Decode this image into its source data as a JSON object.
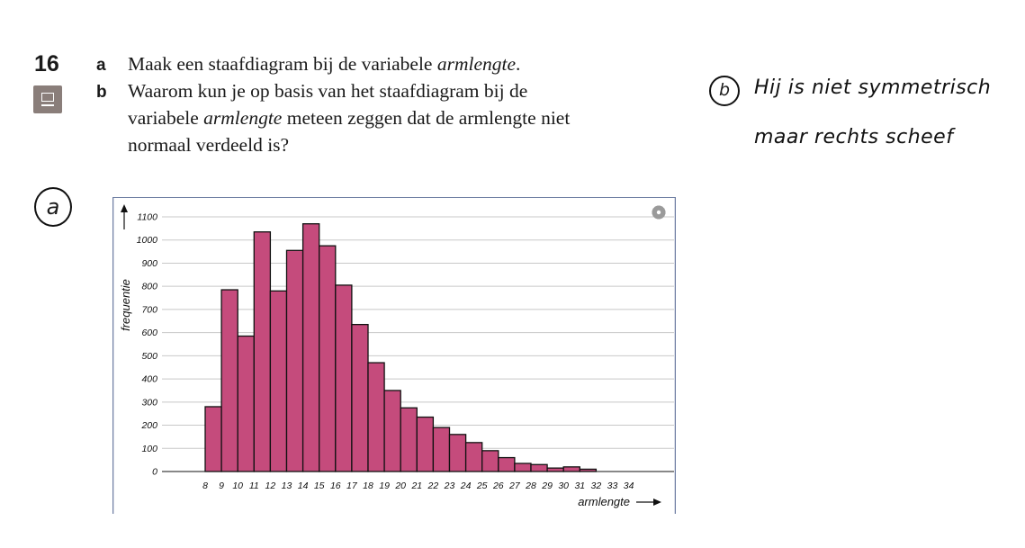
{
  "question": {
    "number": "16",
    "parts": [
      {
        "letter": "a",
        "text_plain": "Maak een staafdiagram bij de variabele ",
        "text_italic": "armlengte",
        "text_end": "."
      },
      {
        "letter": "b",
        "line1": "Waarom kun je op basis van het staafdiagram bij de",
        "line2_plain": "variabele ",
        "line2_italic": "armlengte",
        "line2_end": " meteen zeggen dat de armlengte niet",
        "line3": "normaal verdeeld is?"
      }
    ]
  },
  "handwriting": {
    "label_a": "a",
    "label_b": "b",
    "answer_b_line1": "Hij is niet symmetrisch",
    "answer_b_line2": "maar rechts scheef"
  },
  "icons": {
    "screen": "screen-icon",
    "settings": "gear-icon",
    "arrow_up": "arrow-up-icon",
    "arrow_right": "arrow-right-icon"
  },
  "colors": {
    "bar_fill": "#c54b7c",
    "bar_stroke": "#111111",
    "grid": "#c8c8c8",
    "frame": "#6f7fa3"
  },
  "chart_data": {
    "type": "bar",
    "xlabel": "armlengte",
    "ylabel": "frequentie",
    "ylim": [
      0,
      1100
    ],
    "yticks": [
      0,
      100,
      200,
      300,
      400,
      500,
      600,
      700,
      800,
      900,
      1000,
      1100
    ],
    "x": [
      8,
      9,
      10,
      11,
      12,
      13,
      14,
      15,
      16,
      17,
      18,
      19,
      20,
      21,
      22,
      23,
      24,
      25,
      26,
      27,
      28,
      29,
      30,
      31,
      32,
      33,
      34
    ],
    "values": [
      280,
      785,
      585,
      1035,
      780,
      955,
      1070,
      975,
      805,
      635,
      470,
      350,
      275,
      235,
      190,
      160,
      125,
      90,
      60,
      35,
      30,
      15,
      20,
      10,
      0,
      0,
      0
    ],
    "grid": true
  }
}
